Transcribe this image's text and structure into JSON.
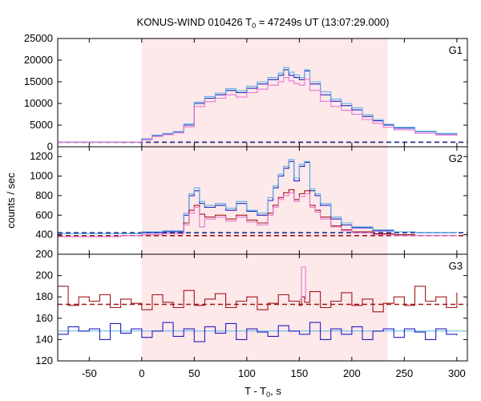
{
  "chart_data": {
    "type": "line",
    "title": {
      "prefix": "KONUS-WIND 010426 T",
      "sub": "0",
      "suffix": " = 47249s UT (13:07:29.000)"
    },
    "xlabel": {
      "main": "T - T",
      "sub": "0",
      "suffix": ", s"
    },
    "ylabel": "counts / sec",
    "xlim": [
      -80,
      310
    ],
    "xticks": [
      -50,
      0,
      50,
      100,
      150,
      200,
      250,
      300
    ],
    "shaded_interval": [
      0,
      234
    ],
    "colors": {
      "dark_blue": "#2020c0",
      "light_blue": "#5ab4e6",
      "dark_red": "#a01818",
      "pink": "#e678d2",
      "dashed_blue": "#203090",
      "dashed_red": "#a01818",
      "shade": "#fde8ea"
    },
    "panels": [
      {
        "name": "G1",
        "ylim": [
          0,
          25000
        ],
        "yticks": [
          0,
          5000,
          10000,
          15000,
          20000,
          25000
        ],
        "background_levels": [
          {
            "value": 1050,
            "color": "dark_red",
            "dashed": true
          },
          {
            "value": 1050,
            "color": "dashed_blue",
            "dashed": true
          }
        ],
        "series": [
          {
            "color": "dark_blue",
            "x": [
              -80,
              -20,
              0,
              10,
              20,
              30,
              40,
              50,
              60,
              70,
              80,
              90,
              100,
              110,
              120,
              130,
              135,
              140,
              145,
              150,
              155,
              160,
              170,
              180,
              190,
              200,
              210,
              220,
              230,
              240,
              260,
              280,
              300
            ],
            "y": [
              1050,
              1100,
              1800,
              2600,
              3000,
              3400,
              5000,
              10000,
              11200,
              12000,
              13000,
              12500,
              13500,
              14500,
              15500,
              16500,
              17800,
              16500,
              16000,
              15500,
              17500,
              14500,
              12000,
              10500,
              9500,
              8500,
              7000,
              6000,
              5000,
              4300,
              3500,
              3000,
              2700
            ]
          },
          {
            "color": "light_blue",
            "x": [
              -80,
              -20,
              0,
              10,
              20,
              30,
              40,
              50,
              60,
              70,
              80,
              90,
              100,
              110,
              120,
              130,
              135,
              140,
              145,
              150,
              155,
              160,
              170,
              180,
              190,
              200,
              210,
              220,
              230,
              240,
              260,
              280,
              300
            ],
            "y": [
              1050,
              1100,
              1800,
              2700,
              3100,
              3500,
              5300,
              10300,
              11600,
              12400,
              13400,
              12900,
              14000,
              15000,
              16000,
              17000,
              18300,
              17200,
              16600,
              16000,
              17800,
              15000,
              12700,
              11000,
              10000,
              9000,
              7400,
              6300,
              5200,
              4500,
              3600,
              3100,
              2800
            ]
          },
          {
            "color": "pink",
            "x": [
              -80,
              -20,
              0,
              10,
              20,
              30,
              40,
              50,
              60,
              70,
              80,
              90,
              100,
              110,
              120,
              130,
              135,
              140,
              145,
              150,
              155,
              160,
              170,
              180,
              190,
              200,
              210,
              220,
              230,
              240,
              260,
              280,
              300
            ],
            "y": [
              1050,
              1100,
              1600,
              2400,
              2800,
              3200,
              4600,
              9300,
              10400,
              11200,
              12000,
              11500,
              12500,
              13300,
              14200,
              15000,
              16000,
              15200,
              14600,
              14200,
              15600,
              13000,
              10500,
              9300,
              8400,
              7500,
              6300,
              5400,
              4500,
              3900,
              3100,
              2700,
              2500
            ]
          }
        ]
      },
      {
        "name": "G2",
        "ylim": [
          200,
          1300
        ],
        "yticks": [
          200,
          400,
          600,
          800,
          1000,
          1200
        ],
        "background_levels": [
          {
            "value": 420,
            "color": "dashed_blue",
            "dashed": true
          },
          {
            "value": 390,
            "color": "dashed_red",
            "dashed": true
          }
        ],
        "series": [
          {
            "color": "dark_blue",
            "x": [
              -80,
              -20,
              0,
              20,
              40,
              45,
              50,
              55,
              60,
              70,
              80,
              90,
              100,
              110,
              120,
              125,
              130,
              135,
              140,
              145,
              150,
              155,
              160,
              165,
              170,
              180,
              190,
              200,
              220,
              240,
              260,
              280,
              300
            ],
            "y": [
              410,
              410,
              420,
              430,
              600,
              800,
              850,
              720,
              680,
              700,
              650,
              720,
              640,
              600,
              750,
              880,
              1000,
              1080,
              1150,
              950,
              1100,
              1140,
              850,
              800,
              700,
              560,
              500,
              470,
              440,
              430,
              420,
              420,
              420
            ]
          },
          {
            "color": "light_blue",
            "x": [
              -80,
              -20,
              0,
              20,
              40,
              45,
              50,
              55,
              60,
              70,
              80,
              90,
              100,
              110,
              120,
              125,
              130,
              135,
              140,
              145,
              150,
              155,
              160,
              165,
              170,
              180,
              190,
              200,
              220,
              240,
              260,
              280,
              300
            ],
            "y": [
              410,
              410,
              430,
              440,
              620,
              820,
              880,
              740,
              700,
              720,
              670,
              740,
              650,
              620,
              780,
              900,
              1020,
              1100,
              1170,
              980,
              1120,
              1150,
              870,
              820,
              720,
              580,
              520,
              480,
              450,
              430,
              420,
              420,
              420
            ]
          },
          {
            "color": "dark_red",
            "x": [
              -80,
              -20,
              0,
              20,
              40,
              45,
              50,
              55,
              60,
              70,
              80,
              90,
              100,
              110,
              120,
              125,
              130,
              135,
              140,
              145,
              150,
              155,
              160,
              165,
              170,
              180,
              190,
              200,
              220,
              240,
              260,
              280,
              300
            ],
            "y": [
              380,
              390,
              400,
              410,
              520,
              650,
              700,
              610,
              580,
              600,
              560,
              600,
              550,
              520,
              620,
              700,
              780,
              830,
              860,
              760,
              820,
              850,
              700,
              650,
              580,
              490,
              450,
              430,
              410,
              400,
              390,
              390,
              390
            ]
          },
          {
            "color": "pink",
            "x": [
              -80,
              -20,
              0,
              20,
              40,
              45,
              50,
              55,
              60,
              70,
              80,
              90,
              100,
              110,
              120,
              125,
              130,
              135,
              140,
              145,
              150,
              155,
              160,
              165,
              170,
              180,
              190,
              200,
              220,
              240,
              260,
              280,
              300
            ],
            "y": [
              380,
              390,
              400,
              410,
              500,
              620,
              680,
              480,
              560,
              580,
              540,
              580,
              530,
              500,
              600,
              680,
              760,
              800,
              830,
              740,
              790,
              820,
              680,
              630,
              560,
              480,
              440,
              420,
              400,
              390,
              390,
              390,
              390
            ]
          }
        ]
      },
      {
        "name": "G3",
        "ylim": [
          120,
          220
        ],
        "yticks": [
          120,
          140,
          160,
          180,
          200
        ],
        "background_levels": [
          {
            "value": 173,
            "color": "dashed_red",
            "dashed": true
          },
          {
            "value": 148,
            "color": "light_blue",
            "dashed": false
          }
        ],
        "series": [
          {
            "color": "dark_red",
            "x": [
              -80,
              -70,
              -60,
              -50,
              -40,
              -30,
              -20,
              -10,
              0,
              10,
              20,
              30,
              40,
              50,
              60,
              70,
              80,
              90,
              100,
              110,
              120,
              130,
              140,
              150,
              152,
              155,
              160,
              170,
              180,
              190,
              200,
              210,
              220,
              230,
              240,
              250,
              260,
              270,
              280,
              290,
              300
            ],
            "y": [
              190,
              172,
              180,
              176,
              182,
              170,
              178,
              174,
              168,
              182,
              175,
              170,
              186,
              172,
              178,
              183,
              170,
              176,
              180,
              168,
              174,
              182,
              176,
              172,
              180,
              175,
              185,
              170,
              176,
              184,
              172,
              178,
              166,
              174,
              180,
              172,
              190,
              176,
              180,
              170,
              184
            ]
          },
          {
            "color": "pink",
            "x": [
              150,
              152,
              154,
              156
            ],
            "y": [
              178,
              208,
              208,
              178
            ]
          },
          {
            "color": "dark_blue",
            "x": [
              -80,
              -70,
              -60,
              -50,
              -40,
              -30,
              -20,
              -10,
              0,
              10,
              20,
              30,
              40,
              50,
              60,
              70,
              80,
              90,
              100,
              110,
              120,
              130,
              140,
              150,
              160,
              170,
              180,
              190,
              200,
              210,
              220,
              230,
              240,
              250,
              260,
              270,
              280,
              290,
              300
            ],
            "y": [
              145,
              152,
              148,
              150,
              140,
              155,
              146,
              150,
              142,
              148,
              156,
              143,
              150,
              138,
              152,
              146,
              155,
              140,
              150,
              147,
              143,
              153,
              148,
              145,
              156,
              140,
              150,
              145,
              152,
              140,
              148,
              150,
              142,
              150,
              147,
              140,
              150,
              145,
              144
            ]
          }
        ]
      }
    ]
  }
}
